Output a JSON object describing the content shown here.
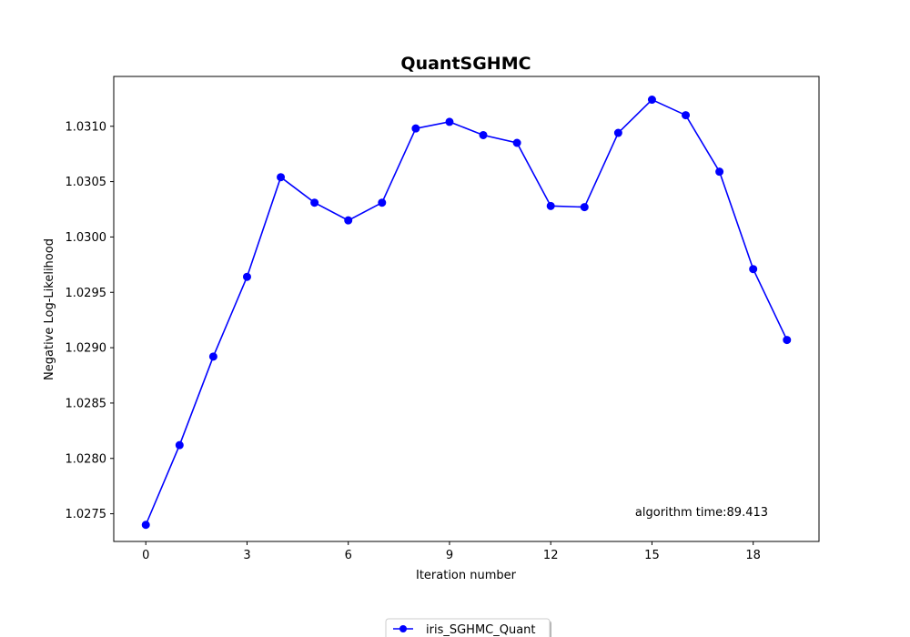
{
  "chart_data": {
    "type": "line",
    "title": "QuantSGHMC",
    "xlabel": "Iteration number",
    "ylabel": "Negative Log-Likelihood",
    "xlim": [
      -0.95,
      19.95
    ],
    "ylim": [
      1.02725,
      1.03145
    ],
    "xticks": [
      0,
      3,
      6,
      9,
      12,
      15,
      18
    ],
    "yticks": [
      1.0275,
      1.028,
      1.0285,
      1.029,
      1.0295,
      1.03,
      1.0305,
      1.031
    ],
    "ytick_labels": [
      "1.0275",
      "1.0280",
      "1.0285",
      "1.0290",
      "1.0295",
      "1.0300",
      "1.0305",
      "1.0310"
    ],
    "grid": false,
    "legend_position": "below-center",
    "annotation": {
      "text": "algorithm time:89.413",
      "x": 14.5,
      "y": 1.02748
    },
    "series": [
      {
        "name": "iris_SGHMC_Quant",
        "color": "#0000ff",
        "marker": "circle",
        "x": [
          0,
          1,
          2,
          3,
          4,
          5,
          6,
          7,
          8,
          9,
          10,
          11,
          12,
          13,
          14,
          15,
          16,
          17,
          18,
          19
        ],
        "y": [
          1.0274,
          1.02812,
          1.02892,
          1.02964,
          1.03054,
          1.03031,
          1.03015,
          1.03031,
          1.03098,
          1.03104,
          1.03092,
          1.03085,
          1.03028,
          1.03027,
          1.03094,
          1.03124,
          1.0311,
          1.03059,
          1.02971,
          1.02907
        ]
      }
    ]
  }
}
